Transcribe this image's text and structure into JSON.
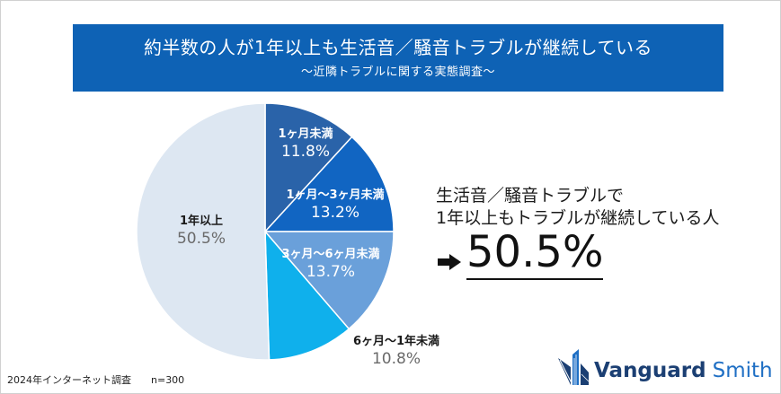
{
  "header": {
    "title": "約半数の人が1年以上も生活音／騒音トラブルが継続している",
    "subtitle": "～近隣トラブルに関する実態調査～"
  },
  "chart_data": {
    "type": "pie",
    "start": "12 o'clock",
    "direction": "clockwise",
    "slices": [
      {
        "label": "1ヶ月未満",
        "value": 11.8,
        "display": "11.8%",
        "color": "#2a63a9"
      },
      {
        "label": "1ヶ月～3ヶ月未満",
        "value": 13.2,
        "display": "13.2%",
        "color": "#1165c2"
      },
      {
        "label": "3ヶ月～6ヶ月未満",
        "value": 13.7,
        "display": "13.7%",
        "color": "#6aa0da"
      },
      {
        "label": "6ヶ月～1年未満",
        "value": 10.8,
        "display": "10.8%",
        "color": "#0fb0ec"
      },
      {
        "label": "1年以上",
        "value": 50.5,
        "display": "50.5%",
        "color": "#dde7f2"
      }
    ]
  },
  "callout": {
    "line1": "生活音／騒音トラブルで",
    "line2": "1年以上もトラブルが継続している人",
    "value": "50.5%"
  },
  "footnote": {
    "source": "2024年インターネット調査",
    "sample": "n=300"
  },
  "logo": {
    "word1": "Vanguard",
    "word2": "Smith"
  }
}
